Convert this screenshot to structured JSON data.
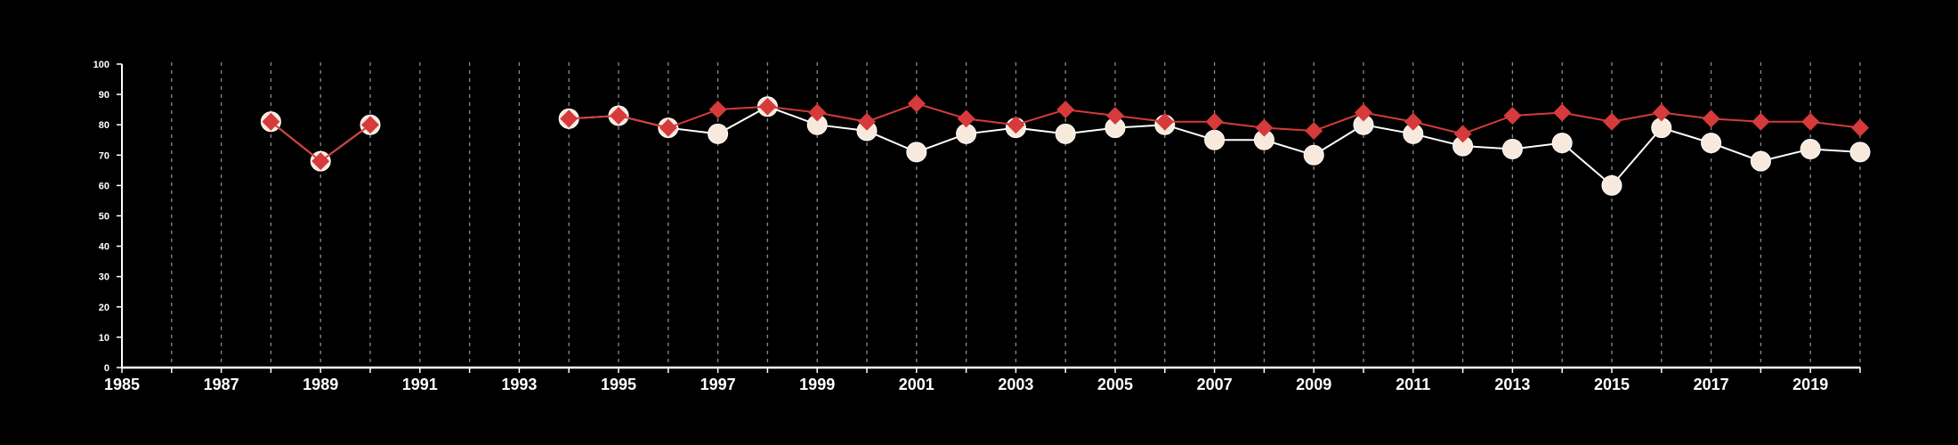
{
  "chart_data": {
    "type": "line",
    "title": "",
    "xlabel": "",
    "ylabel": "",
    "xlim": [
      1985,
      2020
    ],
    "ylim": [
      0,
      100
    ],
    "x_ticks_labeled": [
      1985,
      1987,
      1989,
      1991,
      1993,
      1995,
      1997,
      1999,
      2001,
      2003,
      2005,
      2007,
      2009,
      2011,
      2013,
      2015,
      2017,
      2019
    ],
    "y_ticks": [
      0,
      10,
      20,
      30,
      40,
      50,
      60,
      70,
      80,
      90,
      100
    ],
    "grid": "vertical dashed lines at every year",
    "legend": "none",
    "background": "#000000",
    "series": [
      {
        "marker": "circle",
        "color": "#ffffff",
        "fill": "#f7e9dc",
        "points": [
          [
            1988,
            81
          ],
          [
            1989,
            68
          ],
          [
            1990,
            80
          ],
          [
            1994,
            82
          ],
          [
            1995,
            83
          ],
          [
            1996,
            79
          ],
          [
            1997,
            77
          ],
          [
            1998,
            86
          ],
          [
            1999,
            80
          ],
          [
            2000,
            78
          ],
          [
            2001,
            71
          ],
          [
            2002,
            77
          ],
          [
            2003,
            79
          ],
          [
            2004,
            77
          ],
          [
            2005,
            79
          ],
          [
            2006,
            80
          ],
          [
            2007,
            75
          ],
          [
            2008,
            75
          ],
          [
            2009,
            70
          ],
          [
            2010,
            80
          ],
          [
            2011,
            77
          ],
          [
            2012,
            73
          ],
          [
            2013,
            72
          ],
          [
            2014,
            74
          ],
          [
            2015,
            60
          ],
          [
            2016,
            79
          ],
          [
            2017,
            74
          ],
          [
            2018,
            68
          ],
          [
            2019,
            72
          ],
          [
            2020,
            71
          ]
        ]
      },
      {
        "marker": "diamond",
        "color": "#d63a3a",
        "points": [
          [
            1988,
            81
          ],
          [
            1989,
            68
          ],
          [
            1990,
            80
          ],
          [
            1994,
            82
          ],
          [
            1995,
            83
          ],
          [
            1996,
            79
          ],
          [
            1997,
            85
          ],
          [
            1998,
            86
          ],
          [
            1999,
            84
          ],
          [
            2000,
            81
          ],
          [
            2001,
            87
          ],
          [
            2002,
            82
          ],
          [
            2003,
            80
          ],
          [
            2004,
            85
          ],
          [
            2005,
            83
          ],
          [
            2006,
            81
          ],
          [
            2007,
            81
          ],
          [
            2008,
            79
          ],
          [
            2009,
            78
          ],
          [
            2010,
            84
          ],
          [
            2011,
            81
          ],
          [
            2012,
            77
          ],
          [
            2013,
            83
          ],
          [
            2014,
            84
          ],
          [
            2015,
            81
          ],
          [
            2016,
            84
          ],
          [
            2017,
            82
          ],
          [
            2018,
            81
          ],
          [
            2019,
            81
          ],
          [
            2020,
            79
          ]
        ]
      }
    ]
  }
}
